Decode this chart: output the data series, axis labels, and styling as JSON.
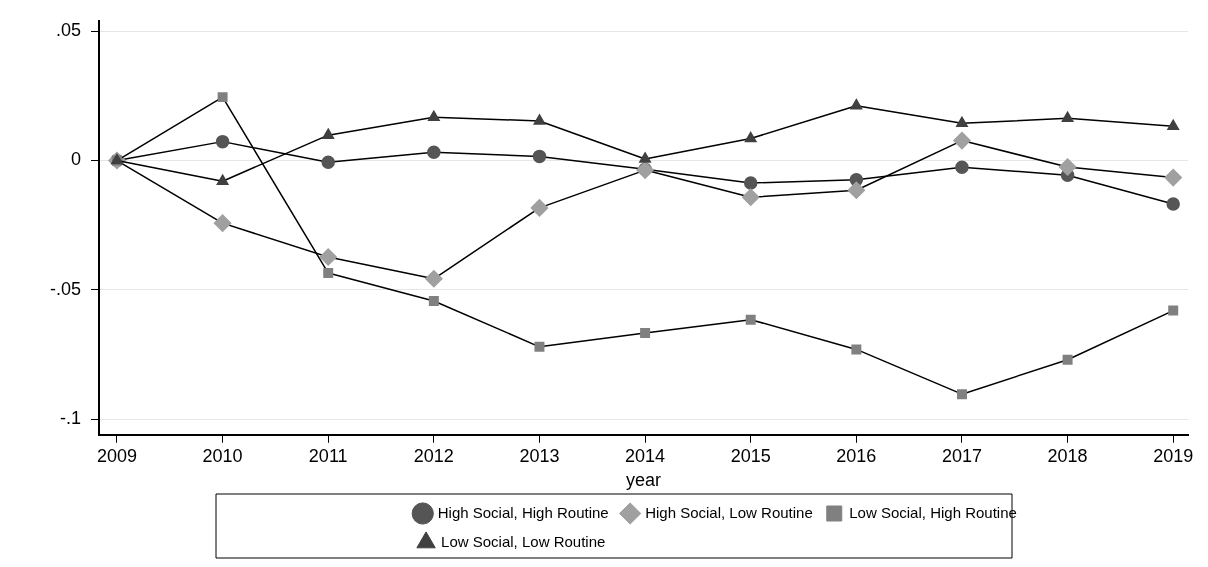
{
  "chart_data": {
    "type": "line",
    "xlabel": "year",
    "x": [
      2009,
      2010,
      2011,
      2012,
      2013,
      2014,
      2015,
      2016,
      2017,
      2018,
      2019
    ],
    "xlim": [
      2008.83,
      2019.14
    ],
    "xticks": [
      2009,
      2010,
      2011,
      2012,
      2013,
      2014,
      2015,
      2016,
      2017,
      2018,
      2019
    ],
    "ylim": [
      -0.106,
      0.054
    ],
    "yticks": [
      {
        "value": 0.05,
        "label": ".05"
      },
      0,
      {
        "value": -0.05,
        "label": "-.05"
      },
      {
        "value": -0.1,
        "label": "-.1"
      }
    ],
    "grid": "y",
    "legend": "bottom",
    "line_style": "solid",
    "series": [
      {
        "name": "High Social, High Routine",
        "color": "#555555",
        "marker": "circle",
        "values": [
          0,
          0.0073,
          -0.0007,
          0.0032,
          0.0016,
          -0.0034,
          -0.0087,
          -0.0074,
          -0.0026,
          -0.0057,
          -0.0168
        ]
      },
      {
        "name": "High Social, Low Routine",
        "color": "#a0a0a0",
        "marker": "diamond",
        "values": [
          0,
          -0.0242,
          -0.0373,
          -0.0457,
          -0.0183,
          -0.0037,
          -0.0142,
          -0.0115,
          0.0077,
          -0.0025,
          -0.0066
        ]
      },
      {
        "name": "Low Social, High Routine",
        "color": "#808080",
        "marker": "square",
        "values": [
          0,
          0.0245,
          -0.0435,
          -0.0543,
          -0.072,
          -0.0667,
          -0.0615,
          -0.073,
          -0.0903,
          -0.077,
          -0.058
        ]
      },
      {
        "name": "Low Social, Low Routine",
        "color": "#404040",
        "marker": "triangle",
        "values": [
          0,
          -0.008,
          0.0098,
          0.0167,
          0.0153,
          0.0006,
          0.0085,
          0.0212,
          0.0144,
          0.0163,
          0.0132
        ]
      }
    ]
  }
}
